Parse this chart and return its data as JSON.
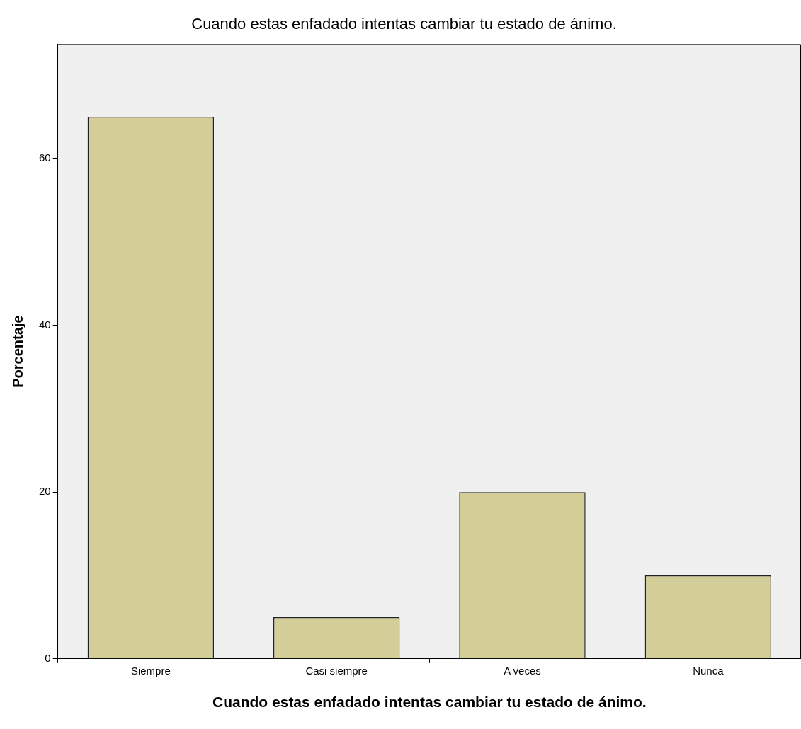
{
  "chart_data": {
    "type": "bar",
    "title": "Cuando estas enfadado intentas cambiar tu estado de ánimo.",
    "xlabel": "Cuando estas enfadado intentas cambiar tu estado de ánimo.",
    "ylabel": "Porcentaje",
    "categories": [
      "Siempre",
      "Casi siempre",
      "A veces",
      "Nunca"
    ],
    "values": [
      65,
      5,
      20,
      10
    ],
    "color": "#d3ce97",
    "ylim": [
      0,
      73.7
    ],
    "yticks": [
      0,
      20,
      40,
      60
    ],
    "grid": false,
    "legend": false
  }
}
